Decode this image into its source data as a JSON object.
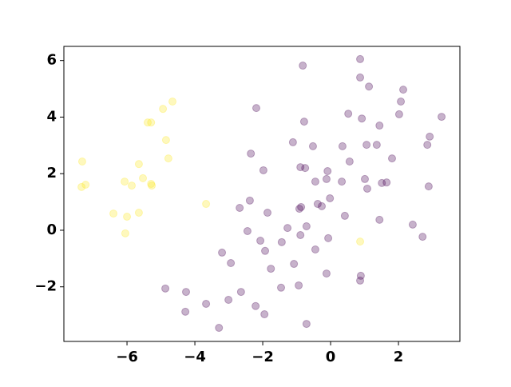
{
  "chart_data": {
    "type": "scatter",
    "series": [
      {
        "color": "#fde725",
        "opacity": 0.3,
        "x": [
          -7.32,
          -7.22,
          -7.34,
          -6.4,
          -6.0,
          -6.05,
          -6.07,
          -5.86,
          -5.65,
          -5.53,
          -5.29,
          -5.27,
          -5.39,
          -5.29,
          -4.94,
          -4.66,
          -4.85,
          -4.78,
          -5.65,
          -3.67,
          0.87
        ],
        "values": [
          2.43,
          1.61,
          1.53,
          0.59,
          0.48,
          -0.11,
          1.72,
          1.58,
          2.34,
          1.84,
          1.64,
          1.58,
          3.81,
          3.81,
          4.29,
          4.55,
          3.19,
          2.54,
          0.62,
          0.93,
          -0.4
        ]
      },
      {
        "color": "#440154",
        "opacity": 0.3,
        "x": [
          -0.82,
          0.87,
          0.87,
          1.13,
          2.14,
          2.07,
          3.27,
          2.02,
          -2.19,
          -0.78,
          0.52,
          0.92,
          1.44,
          -1.11,
          -0.52,
          0.56,
          0.35,
          1.36,
          1.06,
          2.92,
          2.85,
          1.81,
          -2.35,
          -1.98,
          -0.89,
          -0.75,
          -0.45,
          -0.09,
          -0.12,
          0.33,
          1.01,
          1.08,
          1.51,
          1.65,
          2.89,
          -2.38,
          -2.68,
          -1.86,
          -0.92,
          -0.87,
          -0.38,
          -0.26,
          -0.02,
          -0.71,
          0.42,
          1.44,
          2.42,
          2.71,
          -2.45,
          -2.07,
          -1.93,
          -1.44,
          -1.27,
          -0.89,
          -0.07,
          -0.45,
          -3.2,
          -2.94,
          -1.08,
          -1.76,
          -0.12,
          0.89,
          0.87,
          -1.46,
          -0.94,
          -4.87,
          -4.26,
          -2.64,
          -3.67,
          -3.01,
          -4.28,
          -2.21,
          -1.95,
          -3.29,
          -0.71
        ],
        "values": [
          5.82,
          6.05,
          5.4,
          5.08,
          4.97,
          4.55,
          4.01,
          4.1,
          4.32,
          3.84,
          4.12,
          3.95,
          3.7,
          3.11,
          2.97,
          2.43,
          2.97,
          3.02,
          3.02,
          3.31,
          3.02,
          2.54,
          2.71,
          2.12,
          2.23,
          2.2,
          1.72,
          2.09,
          1.81,
          1.72,
          1.81,
          1.47,
          1.67,
          1.69,
          1.55,
          1.05,
          0.79,
          0.62,
          0.76,
          0.82,
          0.93,
          0.85,
          1.13,
          0.14,
          0.51,
          0.37,
          0.2,
          -0.23,
          -0.03,
          -0.37,
          -0.73,
          -0.42,
          0.08,
          -0.17,
          -0.28,
          -0.68,
          -0.79,
          -1.16,
          -1.19,
          -1.36,
          -1.53,
          -1.61,
          -1.78,
          -2.03,
          -1.95,
          -2.06,
          -2.18,
          -2.18,
          -2.6,
          -2.46,
          -2.88,
          -2.68,
          -2.97,
          -3.45,
          -3.31
        ]
      }
    ],
    "xlim": [
      -7.86,
      3.81
    ],
    "ylim": [
      -3.93,
      6.5
    ],
    "xticks": [
      {
        "value": -6,
        "label": "−6"
      },
      {
        "value": -4,
        "label": "−4"
      },
      {
        "value": -2,
        "label": "−2"
      },
      0,
      2
    ],
    "yticks": [
      {
        "value": -2,
        "label": "−2"
      },
      0,
      2,
      4,
      6
    ]
  }
}
